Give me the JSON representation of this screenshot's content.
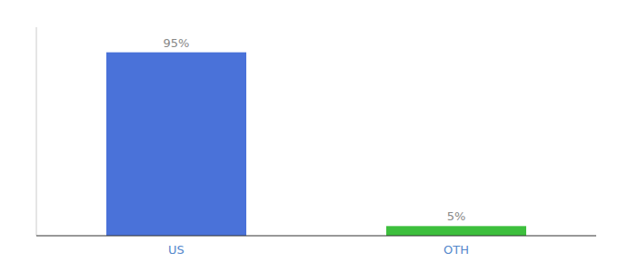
{
  "chart_data": {
    "type": "bar",
    "categories": [
      "US",
      "OTH"
    ],
    "values": [
      95,
      5
    ],
    "value_labels": [
      "95%",
      "5%"
    ],
    "colors": [
      "#4a72d9",
      "#3dbf3d"
    ],
    "ylim": [
      0,
      108
    ],
    "data_labels": true,
    "tick_labels": "x",
    "grid": false
  }
}
